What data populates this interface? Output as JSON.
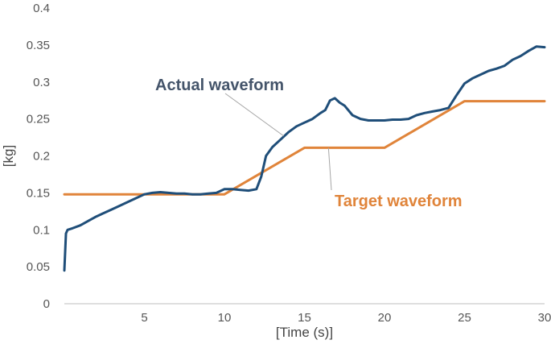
{
  "chart_data": {
    "type": "line",
    "title": "",
    "xlabel": "[Time (s)]",
    "ylabel": "[kg]",
    "xlim": [
      0,
      30
    ],
    "ylim": [
      0,
      0.4
    ],
    "x_ticks": [
      5,
      10,
      15,
      20,
      25,
      30
    ],
    "x_tick_labels": [
      "5",
      "10",
      "15",
      "20",
      "25",
      "30"
    ],
    "y_ticks": [
      0,
      0.05,
      0.1,
      0.15,
      0.2,
      0.25,
      0.3,
      0.35,
      0.4
    ],
    "y_tick_labels": [
      "0",
      "0.05",
      "0.1",
      "0.15",
      "0.2",
      "0.25",
      "0.3",
      "0.35",
      "0.4"
    ],
    "grid": false,
    "series": [
      {
        "name": "Actual waveform",
        "color": "#1f4e79",
        "x": [
          0,
          0.1,
          0.2,
          0.5,
          1.0,
          1.5,
          2.0,
          2.5,
          3.0,
          3.5,
          4.0,
          4.5,
          5.0,
          5.5,
          6.0,
          6.5,
          7.0,
          7.5,
          8.0,
          8.5,
          9.0,
          9.5,
          10.0,
          10.5,
          11.0,
          11.5,
          12.0,
          12.3,
          12.6,
          13.0,
          13.5,
          14.0,
          14.5,
          15.0,
          15.5,
          16.0,
          16.3,
          16.6,
          16.9,
          17.2,
          17.5,
          18.0,
          18.5,
          19.0,
          19.5,
          20.0,
          20.5,
          21.0,
          21.5,
          22.0,
          22.5,
          23.0,
          23.5,
          24.0,
          24.5,
          25.0,
          25.5,
          26.0,
          26.5,
          27.0,
          27.5,
          28.0,
          28.5,
          29.0,
          29.5,
          30.0
        ],
        "values": [
          0.045,
          0.095,
          0.1,
          0.102,
          0.106,
          0.112,
          0.118,
          0.123,
          0.128,
          0.133,
          0.138,
          0.143,
          0.148,
          0.15,
          0.151,
          0.15,
          0.149,
          0.149,
          0.148,
          0.148,
          0.149,
          0.15,
          0.155,
          0.155,
          0.154,
          0.153,
          0.155,
          0.172,
          0.2,
          0.212,
          0.222,
          0.232,
          0.24,
          0.245,
          0.25,
          0.258,
          0.262,
          0.275,
          0.278,
          0.272,
          0.268,
          0.255,
          0.25,
          0.248,
          0.248,
          0.248,
          0.249,
          0.249,
          0.25,
          0.255,
          0.258,
          0.26,
          0.262,
          0.265,
          0.282,
          0.298,
          0.305,
          0.31,
          0.315,
          0.318,
          0.322,
          0.33,
          0.335,
          0.342,
          0.348,
          0.347
        ]
      },
      {
        "name": "Target waveform",
        "color": "#e0843a",
        "x": [
          0,
          10,
          15,
          20,
          25,
          30
        ],
        "values": [
          0.148,
          0.148,
          0.211,
          0.211,
          0.274,
          0.274
        ]
      }
    ],
    "annotations": [
      {
        "text": "Actual waveform",
        "series": "Actual waveform",
        "color": "#44546a",
        "leader_to": [
          13.7,
          0.227
        ]
      },
      {
        "text": "Target waveform",
        "series": "Target waveform",
        "color": "#e0843a",
        "leader_to": [
          16.5,
          0.211
        ]
      }
    ]
  }
}
